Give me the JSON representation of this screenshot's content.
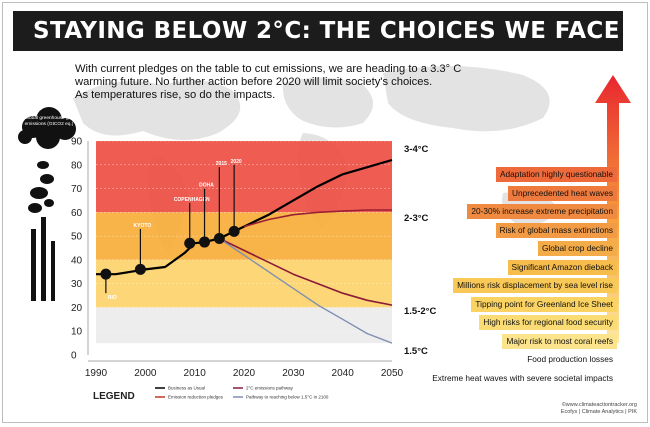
{
  "header": {
    "title": "STAYING BELOW 2°C: THE CHOICES WE FACE"
  },
  "intro": {
    "line1": "With current pledges on the table to cut emissions, we are heading to a 3.3° C",
    "line2": "warming future. No further action before 2020 will limit society's choices.",
    "line3": "As temperatures rise, so do the impacts."
  },
  "colors": {
    "title_bg": "#1c1c1c",
    "band_3_4C": "#ee4f43",
    "band_2_3C": "#f7ad39",
    "band_1_5_2C": "#fdd36b",
    "band_1_5C": "#ececec",
    "bau": "#000000",
    "pledges": "#9b1f35",
    "two_c": "#8a1a38",
    "pathway_1_5": "#7f8fb0"
  },
  "cloud_label": "Global greenhouse gas emissions (GtCO2 eq.)",
  "chart_data": {
    "type": "line",
    "xlim": [
      1990,
      2050
    ],
    "ylim": [
      0,
      90
    ],
    "x_ticks": [
      1990,
      2000,
      2010,
      2020,
      2030,
      2040,
      2050
    ],
    "y_ticks": [
      0,
      10,
      20,
      30,
      40,
      50,
      60,
      70,
      80,
      90
    ],
    "bands": [
      {
        "label": "3-4°C",
        "from": 60,
        "to": 90,
        "color": "#ee4f43"
      },
      {
        "label": "2-3°C",
        "from": 40,
        "to": 60,
        "color": "#f7ad39"
      },
      {
        "label": "1.5-2°C",
        "from": 20,
        "to": 40,
        "color": "#fdd36b"
      },
      {
        "label": "1.5°C",
        "from": 5,
        "to": 20,
        "color": "#ececec"
      }
    ],
    "end_labels": [
      {
        "text": "3-4°C",
        "y": 87
      },
      {
        "text": "2-3°C",
        "y": 58
      },
      {
        "text": "1.5-2°C",
        "y": 19
      },
      {
        "text": "1.5°C",
        "y": 2
      }
    ],
    "series": [
      {
        "name": "Business as Usual",
        "color": "#000000",
        "points": [
          [
            1990,
            34
          ],
          [
            1994,
            34
          ],
          [
            1997,
            35
          ],
          [
            2000,
            36
          ],
          [
            2004,
            37
          ],
          [
            2008,
            43
          ],
          [
            2010,
            47
          ],
          [
            2012,
            47.5
          ],
          [
            2015,
            49
          ],
          [
            2018,
            52
          ],
          [
            2020,
            54
          ],
          [
            2025,
            59
          ],
          [
            2030,
            65
          ],
          [
            2035,
            71
          ],
          [
            2040,
            76
          ],
          [
            2045,
            79
          ],
          [
            2050,
            82
          ]
        ]
      },
      {
        "name": "Emission reduction pledges",
        "color": "#9b1f35",
        "points": [
          [
            2020,
            54
          ],
          [
            2025,
            57
          ],
          [
            2030,
            59
          ],
          [
            2035,
            60
          ],
          [
            2040,
            60.5
          ],
          [
            2045,
            61
          ],
          [
            2050,
            61
          ]
        ]
      },
      {
        "name": "2°C emissions pathway",
        "color": "#8a1a38",
        "points": [
          [
            2015,
            49
          ],
          [
            2020,
            44
          ],
          [
            2025,
            39
          ],
          [
            2030,
            34
          ],
          [
            2035,
            30
          ],
          [
            2040,
            26
          ],
          [
            2045,
            23
          ],
          [
            2050,
            21
          ]
        ]
      },
      {
        "name": "Pathway to reaching below 1.5°C in 2100",
        "color": "#7f8fb0",
        "points": [
          [
            2015,
            49
          ],
          [
            2020,
            42
          ],
          [
            2025,
            35
          ],
          [
            2030,
            28
          ],
          [
            2035,
            21
          ],
          [
            2040,
            15
          ],
          [
            2045,
            9
          ],
          [
            2050,
            5
          ]
        ]
      }
    ],
    "events": [
      {
        "label": "RIO",
        "x": 1992,
        "y": 34,
        "label_y": 26
      },
      {
        "label": "KYOTO",
        "x": 1999,
        "y": 36,
        "label_y": 53
      },
      {
        "label": "COPENHAGEN",
        "x": 2009,
        "y": 47,
        "label_y": 64
      },
      {
        "label": "DOHA",
        "x": 2012,
        "y": 47.5,
        "label_y": 70
      },
      {
        "label": "2015",
        "x": 2015,
        "y": 49,
        "label_y": 79
      },
      {
        "label": "2020",
        "x": 2018,
        "y": 52,
        "label_y": 80
      }
    ],
    "legend_title": "LEGEND",
    "legend": [
      {
        "label": "Business as Usual",
        "color": "#000000"
      },
      {
        "label": "2°C emissions pathway",
        "color": "#8a1a38"
      },
      {
        "label": "Emission reduction pledges",
        "color": "#c0392b"
      },
      {
        "label": "Pathway to reaching below 1.5°C in 2100",
        "color": "#7f8fb0"
      }
    ]
  },
  "impacts": [
    {
      "text": "Adaptation highly questionable",
      "color": "#ee6a3a"
    },
    {
      "text": "Unprecedented heat waves",
      "color": "#ef7a3d"
    },
    {
      "text": "20-30% increase extreme precipitation",
      "color": "#f08a40"
    },
    {
      "text": "Risk of global mass extinctions",
      "color": "#f29b44"
    },
    {
      "text": "Global crop decline",
      "color": "#f4ac48"
    },
    {
      "text": "Significant Amazon dieback",
      "color": "#f6bc4c"
    },
    {
      "text": "Millions risk displacement by sea level rise",
      "color": "#f8c957"
    },
    {
      "text": "Tipping point for Greenland Ice Sheet",
      "color": "#fad363"
    },
    {
      "text": "High risks for regional food security",
      "color": "#fbdc74"
    },
    {
      "text": "Major risk to most coral reefs",
      "color": "#fce48c"
    },
    {
      "text": "Food production losses",
      "color": "#ffffff"
    },
    {
      "text": "Extreme heat waves with severe societal impacts",
      "color": "#ffffff"
    }
  ],
  "credit": {
    "line1": "©www.climateactiontracker.org",
    "line2": "Ecofys | Climate Analytics | PIK"
  }
}
